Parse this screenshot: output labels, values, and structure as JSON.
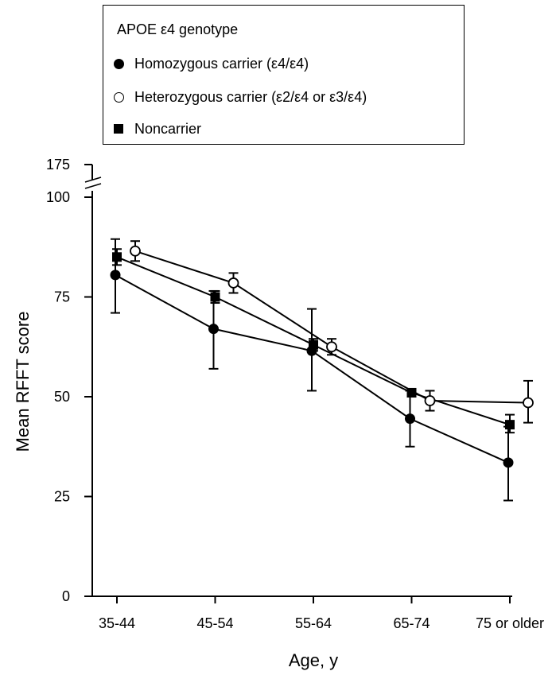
{
  "legend": {
    "title": "APOE ε4 genotype",
    "items": [
      {
        "label": "Homozygous carrier (ε4/ε4)",
        "marker": "filled-circle"
      },
      {
        "label": "Heterozygous carrier (ε2/ε4 or ε3/ε4)",
        "marker": "open-circle"
      },
      {
        "label": "Noncarrier",
        "marker": "filled-square"
      }
    ]
  },
  "chart_data": {
    "type": "line",
    "xlabel": "Age, y",
    "ylabel": "Mean RFFT score",
    "categories": [
      "35-44",
      "45-54",
      "55-64",
      "65-74",
      "75 or older"
    ],
    "yticks": [
      0,
      25,
      50,
      75,
      100
    ],
    "ybreak_top_tick": 175,
    "ylim": [
      0,
      100
    ],
    "axis_break": true,
    "grid": false,
    "legend_position": "top",
    "series": [
      {
        "name": "Homozygous carrier (ε4/ε4)",
        "marker": "filled-circle",
        "values": [
          80.5,
          67,
          61.5,
          44.5,
          33.5
        ],
        "err_low": [
          71,
          57,
          51.5,
          37.5,
          24
        ],
        "err_high": [
          89.5,
          76.5,
          72,
          51.5,
          42.5
        ]
      },
      {
        "name": "Heterozygous carrier (ε2/ε4 or ε3/ε4)",
        "marker": "open-circle",
        "values": [
          86.5,
          78.5,
          62.5,
          49,
          48.5
        ],
        "err_low": [
          84,
          76,
          60.5,
          46.5,
          43.5
        ],
        "err_high": [
          89,
          81,
          64.5,
          51.5,
          54
        ]
      },
      {
        "name": "Noncarrier",
        "marker": "filled-square",
        "values": [
          85,
          75,
          63,
          51,
          43
        ],
        "err_low": [
          83,
          73.5,
          61.5,
          50,
          41
        ],
        "err_high": [
          87,
          76.5,
          64.5,
          52,
          45.5
        ]
      }
    ]
  }
}
